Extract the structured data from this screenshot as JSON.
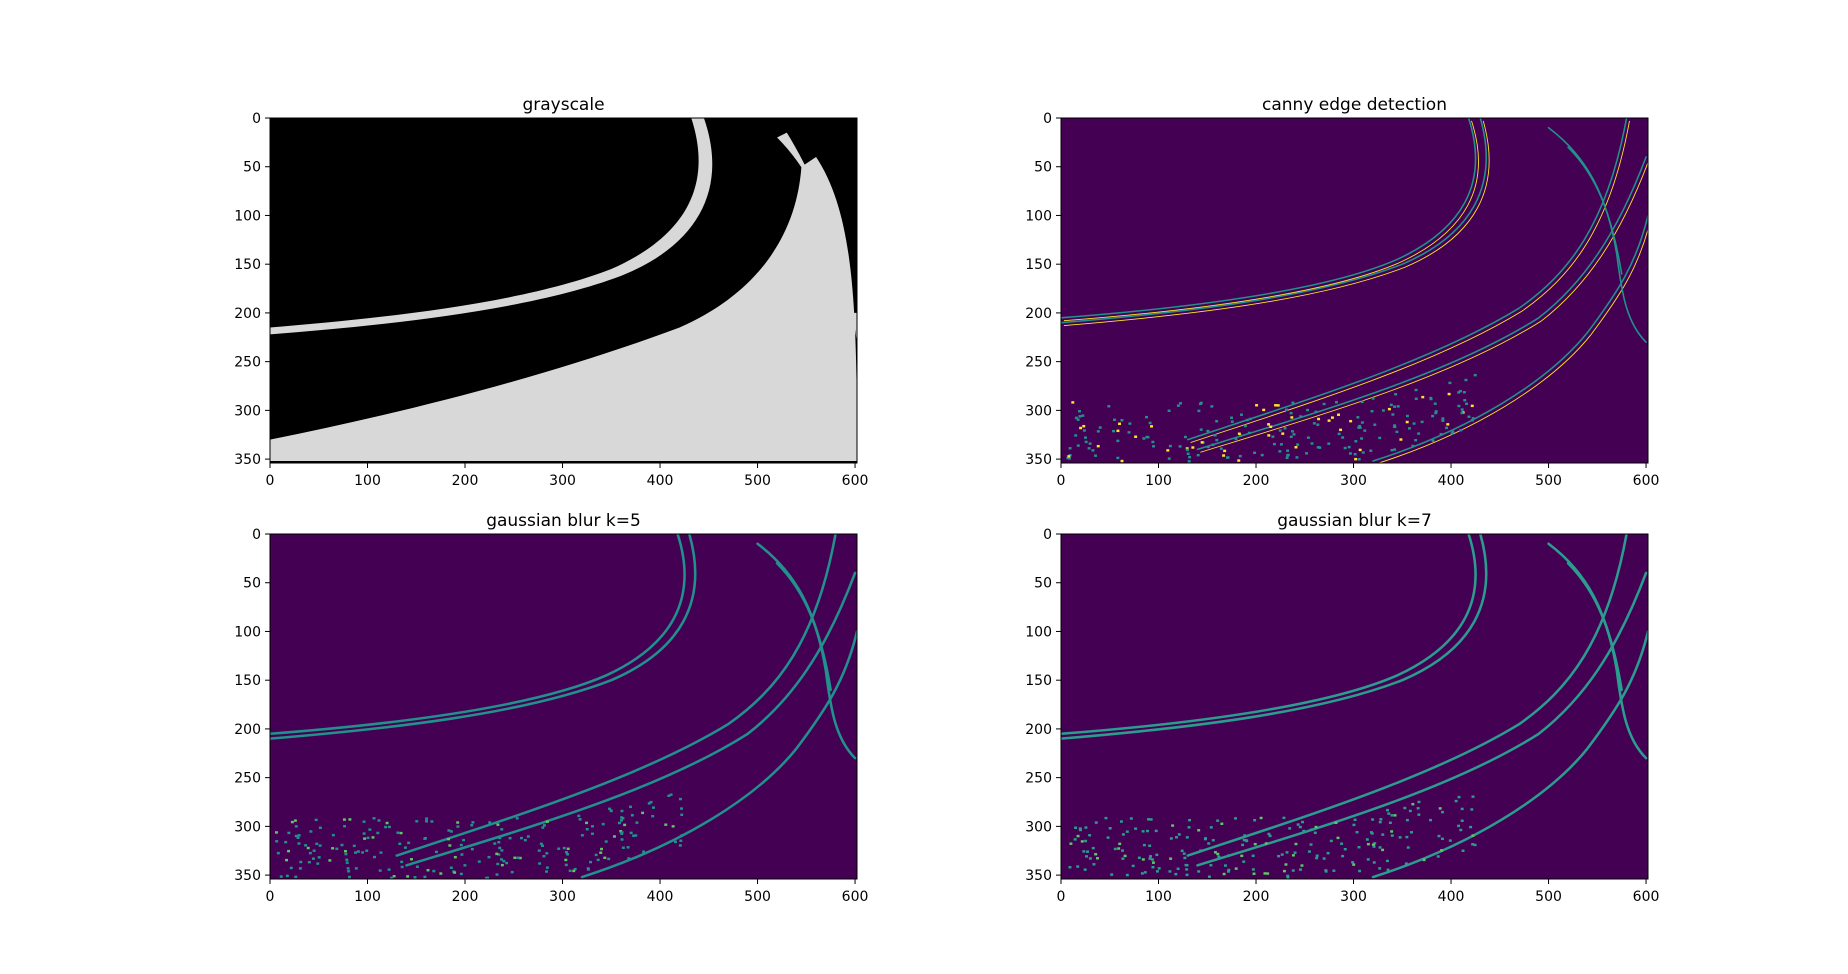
{
  "figure": {
    "background": "#ffffff"
  },
  "chart_data": [
    {
      "type": "heatmap",
      "title": "grayscale",
      "colormap": "gray",
      "xlim": [
        0,
        602
      ],
      "ylim": [
        354,
        0
      ],
      "xticks": [
        0,
        100,
        200,
        300,
        400,
        500,
        600
      ],
      "yticks": [
        0,
        50,
        100,
        150,
        200,
        250,
        300,
        350
      ],
      "colors": {
        "background": "#000000",
        "foreground": "#d8d8d8"
      },
      "grid": false
    },
    {
      "type": "heatmap",
      "title": "canny edge detection",
      "colormap": "viridis",
      "xlim": [
        0,
        602
      ],
      "ylim": [
        354,
        0
      ],
      "xticks": [
        0,
        100,
        200,
        300,
        400,
        500,
        600
      ],
      "yticks": [
        0,
        50,
        100,
        150,
        200,
        250,
        300,
        350
      ],
      "colors": {
        "background": "#440154",
        "edge_mid": "#21918c",
        "edge_high": "#fde725"
      },
      "grid": false
    },
    {
      "type": "heatmap",
      "title": "gaussian blur k=5",
      "colormap": "viridis",
      "xlim": [
        0,
        602
      ],
      "ylim": [
        354,
        0
      ],
      "xticks": [
        0,
        100,
        200,
        300,
        400,
        500,
        600
      ],
      "yticks": [
        0,
        50,
        100,
        150,
        200,
        250,
        300,
        350
      ],
      "colors": {
        "background": "#440154",
        "edge_mid": "#21918c",
        "edge_high": "#5ec962"
      },
      "grid": false
    },
    {
      "type": "heatmap",
      "title": "gaussian blur k=7",
      "colormap": "viridis",
      "xlim": [
        0,
        602
      ],
      "ylim": [
        354,
        0
      ],
      "xticks": [
        0,
        100,
        200,
        300,
        400,
        500,
        600
      ],
      "yticks": [
        0,
        50,
        100,
        150,
        200,
        250,
        300,
        350
      ],
      "colors": {
        "background": "#440154",
        "edge_mid": "#2a9d8f",
        "edge_high": "#5ec962"
      },
      "grid": false
    }
  ]
}
